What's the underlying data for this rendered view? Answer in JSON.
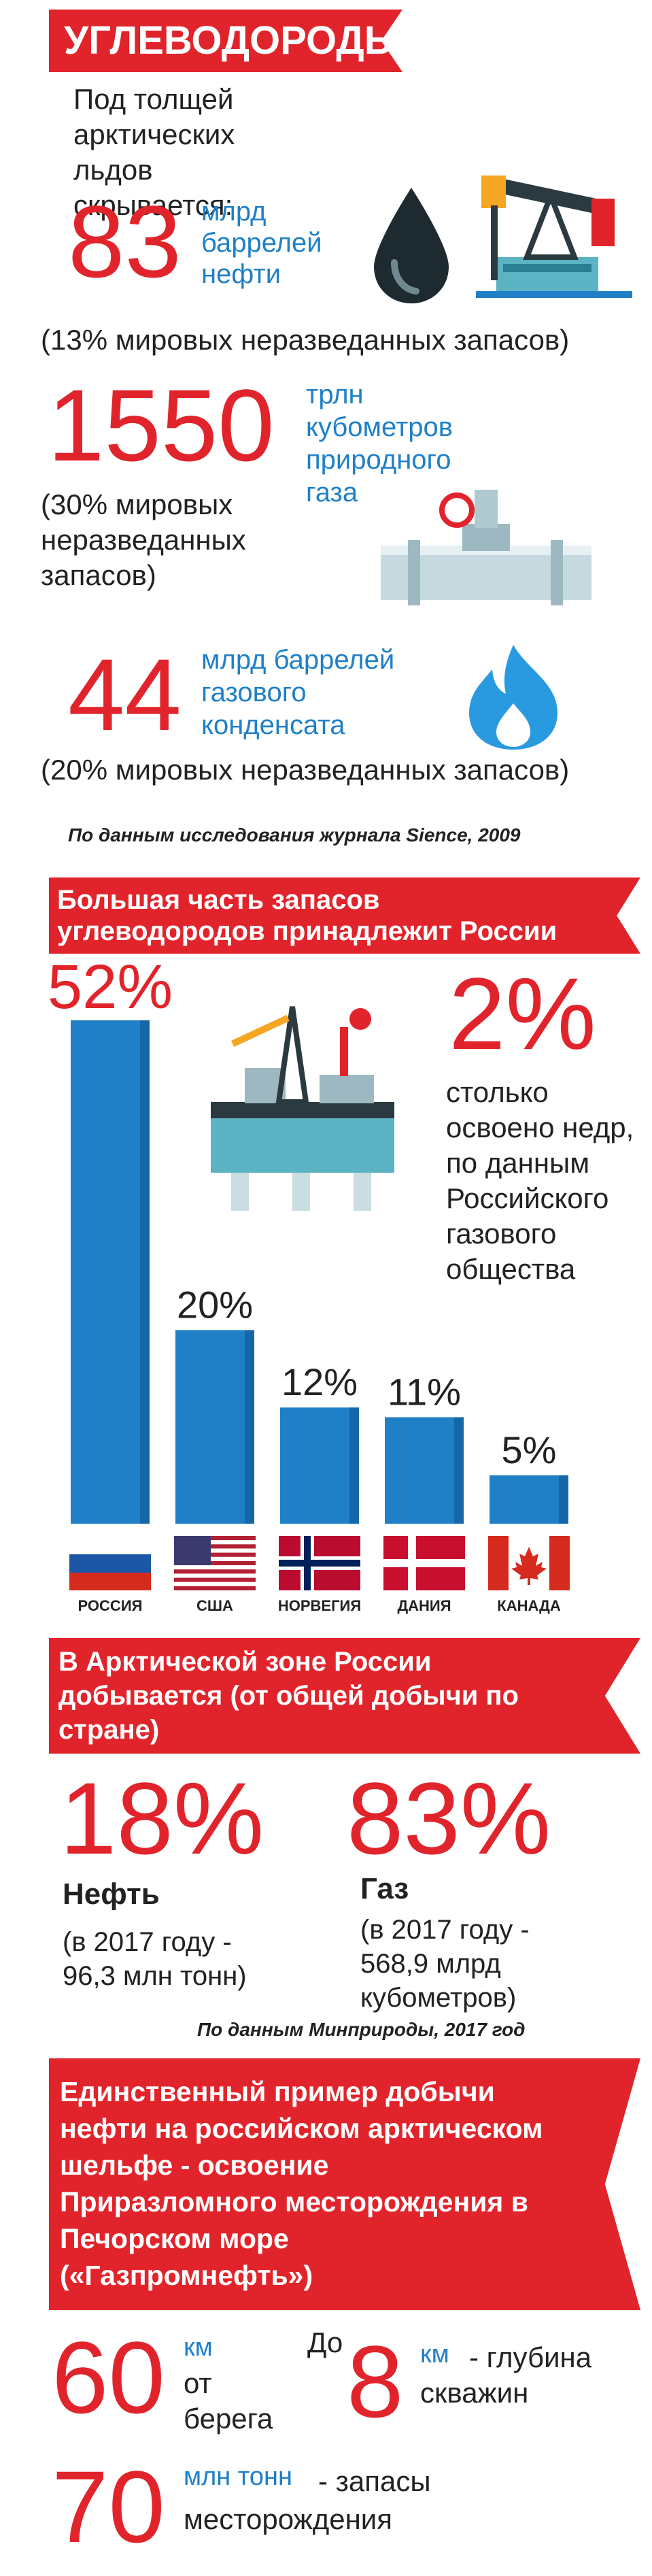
{
  "section1": {
    "title": "УГЛЕВОДОРОДЫ",
    "intro": "Под толщей арктических льдов скрывается:",
    "oil": {
      "value": "83",
      "unit": "млрд баррелей нефти",
      "note": "(13% мировых неразведанных запасов)"
    },
    "gas": {
      "value": "1550",
      "unit": "трлн кубометров природного газа",
      "note": "(30% мировых неразведанных запасов)"
    },
    "condensate": {
      "value": "44",
      "unit": "млрд баррелей газового конденсата",
      "note": "(20% мировых неразведанных запасов)"
    },
    "source": "По данным исследования журнала Sience, 2009"
  },
  "section2": {
    "title": "Большая часть запасов углеводородов принадлежит России",
    "side_value": "2%",
    "side_text": "столько освоено недр, по данным Российского газового общества"
  },
  "chart_data": {
    "type": "bar",
    "categories": [
      "РОССИЯ",
      "США",
      "НОРВЕГИЯ",
      "ДАНИЯ",
      "КАНАДА"
    ],
    "values": [
      52,
      20,
      12,
      11,
      5
    ],
    "value_labels": [
      "52%",
      "20%",
      "12%",
      "11%",
      "5%"
    ],
    "color": "#1f80c8"
  },
  "section3": {
    "title": "В Арктической зоне России добывается (от общей добычи по стране)",
    "oil": {
      "value": "18%",
      "label": "Нефть",
      "note": "(в 2017 году - 96,3 млн тонн)"
    },
    "gas": {
      "value": "83%",
      "label": "Газ",
      "note": "(в 2017 году - 568,9 млрд кубометров)"
    },
    "source": "По данным Минприроды, 2017 год"
  },
  "section4": {
    "title": "Единственный пример добычи нефти на российском арктическом шельфе - освоение Приразломного месторождения в Печорском море («Газпромнефть»)",
    "distance": {
      "value": "60",
      "unit": "км",
      "text": "от берега"
    },
    "depth": {
      "prefix": "До",
      "value": "8",
      "unit": "км",
      "text": "- глубина скважин"
    },
    "reserves": {
      "value": "70",
      "unit": "млн тонн",
      "text": "- запасы месторождения"
    }
  },
  "colors": {
    "accent": "#e1242b",
    "blue": "#1f80c8",
    "text": "#222222"
  }
}
